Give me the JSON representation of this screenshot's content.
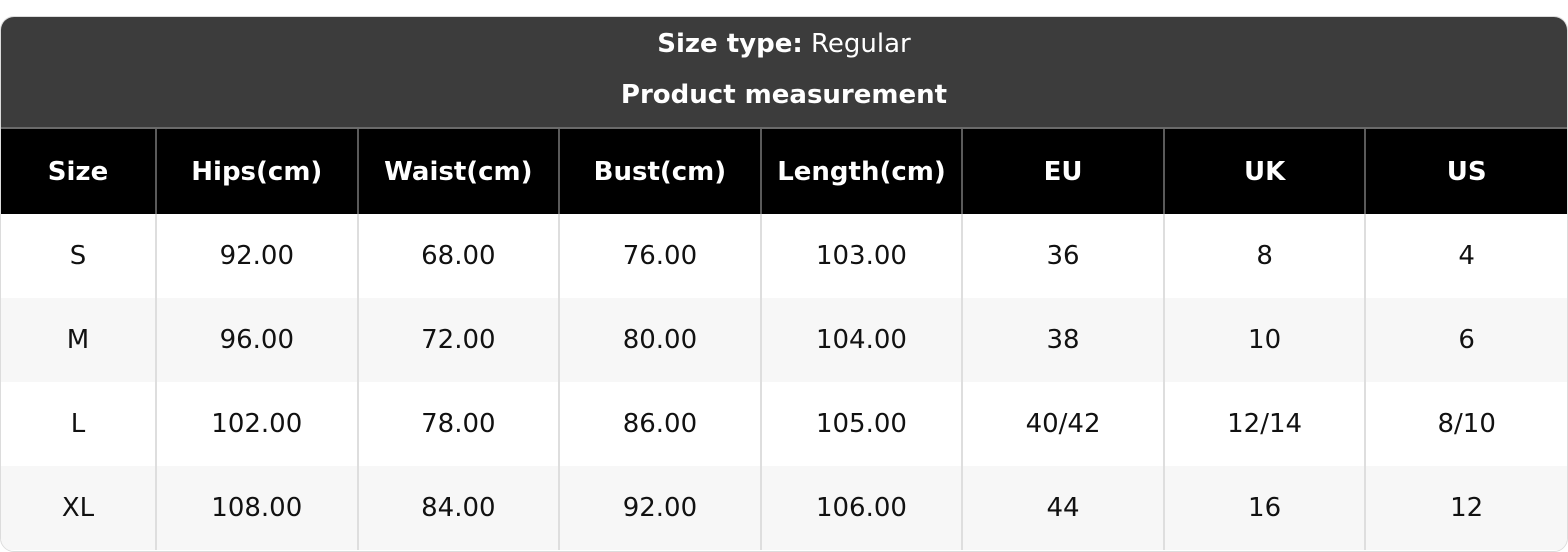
{
  "header": {
    "size_type_label": "Size type:",
    "size_type_value": "Regular",
    "subtitle": "Product measurement"
  },
  "table": {
    "columns": [
      "Size",
      "Hips(cm)",
      "Waist(cm)",
      "Bust(cm)",
      "Length(cm)",
      "EU",
      "UK",
      "US"
    ],
    "rows": [
      [
        "S",
        "92.00",
        "68.00",
        "76.00",
        "103.00",
        "36",
        "8",
        "4"
      ],
      [
        "M",
        "96.00",
        "72.00",
        "80.00",
        "104.00",
        "38",
        "10",
        "6"
      ],
      [
        "L",
        "102.00",
        "78.00",
        "86.00",
        "105.00",
        "40/42",
        "12/14",
        "8/10"
      ],
      [
        "XL",
        "108.00",
        "84.00",
        "92.00",
        "106.00",
        "44",
        "16",
        "12"
      ]
    ]
  }
}
